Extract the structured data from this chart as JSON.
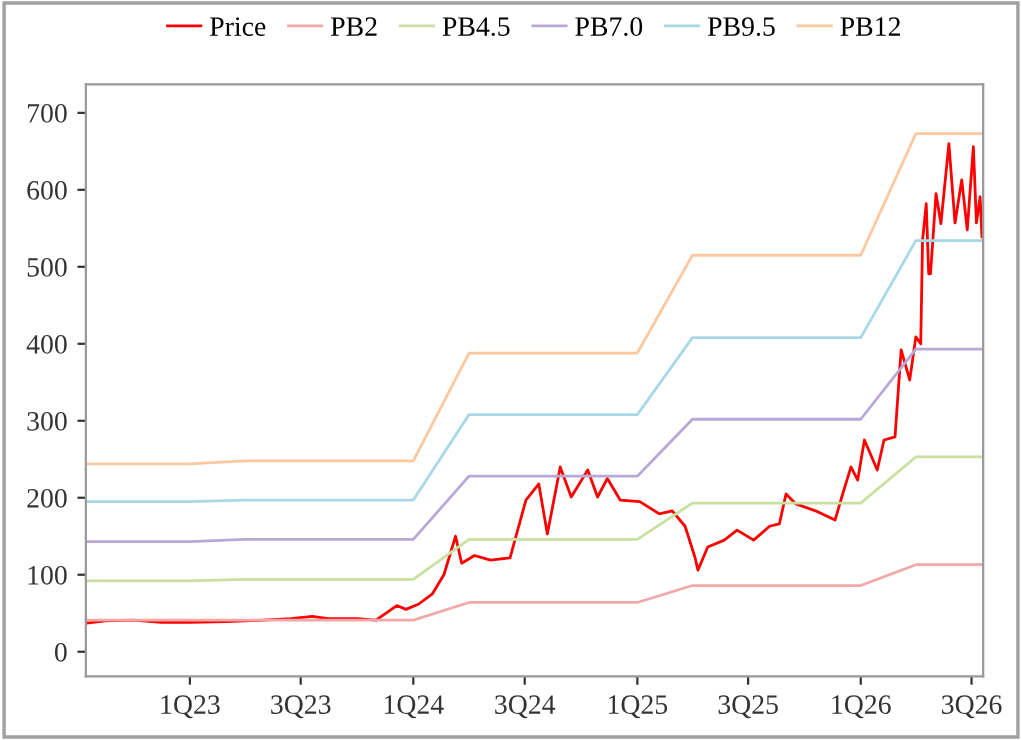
{
  "chart_data": {
    "type": "line",
    "xlim": [
      "2022-07-15",
      "2026-07-20"
    ],
    "xticks": [
      {
        "value": "2023-01-01",
        "label": "1Q23"
      },
      {
        "value": "2023-07-01",
        "label": "3Q23"
      },
      {
        "value": "2024-01-01",
        "label": "1Q24"
      },
      {
        "value": "2024-07-01",
        "label": "3Q24"
      },
      {
        "value": "2025-01-01",
        "label": "1Q25"
      },
      {
        "value": "2025-07-01",
        "label": "3Q25"
      },
      {
        "value": "2026-01-01",
        "label": "1Q26"
      },
      {
        "value": "2026-07-01",
        "label": "3Q26"
      }
    ],
    "ylim": [
      -32,
      737
    ],
    "yticks": [
      0,
      100,
      200,
      300,
      400,
      500,
      600,
      700
    ],
    "grid": false,
    "legend": "top",
    "line_style": "solid",
    "marker": "none",
    "series": [
      {
        "name": "Price",
        "color": "#ff0000",
        "x": [
          "2022-07-15",
          "2022-08-15",
          "2022-10-01",
          "2022-11-15",
          "2023-01-01",
          "2023-03-01",
          "2023-05-01",
          "2023-06-15",
          "2023-07-20",
          "2023-08-15",
          "2023-10-01",
          "2023-11-01",
          "2023-12-05",
          "2023-12-20",
          "2024-01-10",
          "2024-02-01",
          "2024-02-20",
          "2024-03-10",
          "2024-03-20",
          "2024-04-10",
          "2024-05-06",
          "2024-06-07",
          "2024-07-03",
          "2024-07-24",
          "2024-08-07",
          "2024-08-28",
          "2024-09-15",
          "2024-10-12",
          "2024-10-28",
          "2024-11-13",
          "2024-12-04",
          "2025-01-05",
          "2025-02-06",
          "2025-02-27",
          "2025-03-20",
          "2025-04-05",
          "2025-04-10",
          "2025-04-26",
          "2025-05-23",
          "2025-06-13",
          "2025-07-10",
          "2025-08-05",
          "2025-08-21",
          "2025-09-01",
          "2025-09-17",
          "2025-10-19",
          "2025-11-20",
          "2025-12-01",
          "2025-12-16",
          "2025-12-27",
          "2026-01-07",
          "2026-01-28",
          "2026-02-08",
          "2026-02-26",
          "2026-03-08",
          "2026-03-22",
          "2026-04-01",
          "2026-04-09",
          "2026-04-12",
          "2026-04-18",
          "2026-04-22",
          "2026-04-25",
          "2026-05-04",
          "2026-05-12",
          "2026-05-25",
          "2026-06-04",
          "2026-06-15",
          "2026-06-24",
          "2026-07-04",
          "2026-07-09",
          "2026-07-15",
          "2026-07-18"
        ],
        "values": [
          37,
          40,
          41,
          38,
          38,
          39,
          41,
          43,
          46,
          43,
          43,
          41,
          60,
          55,
          62,
          75,
          100,
          150,
          115,
          125,
          119,
          122,
          197,
          218,
          153,
          240,
          201,
          236,
          201,
          225,
          197,
          195,
          179,
          183,
          163,
          123,
          106,
          136,
          145,
          158,
          145,
          163,
          166,
          205,
          192,
          183,
          171,
          201,
          240,
          223,
          275,
          236,
          275,
          279,
          392,
          353,
          409,
          400,
          535,
          582,
          491,
          491,
          595,
          556,
          660,
          557,
          613,
          548,
          656,
          557,
          591,
          539
        ]
      },
      {
        "name": "PB2",
        "color": "#f0a8a8",
        "x": [
          "2022-07-15",
          "2023-01-01",
          "2023-04-01",
          "2024-01-01",
          "2024-04-01",
          "2025-01-01",
          "2025-04-01",
          "2026-01-01",
          "2026-04-01",
          "2026-07-20"
        ],
        "values": [
          41,
          41,
          41,
          41,
          64,
          64,
          86,
          86,
          113,
          113
        ]
      },
      {
        "name": "PB4.5",
        "color": "#c8e0a0",
        "x": [
          "2022-07-15",
          "2023-01-01",
          "2023-04-01",
          "2024-01-01",
          "2024-04-01",
          "2025-01-01",
          "2025-04-01",
          "2026-01-01",
          "2026-04-01",
          "2026-07-20"
        ],
        "values": [
          92,
          92,
          94,
          94,
          146,
          146,
          193,
          193,
          253,
          253
        ]
      },
      {
        "name": "PB7.0",
        "color": "#b8a8d8",
        "x": [
          "2022-07-15",
          "2023-01-01",
          "2023-04-01",
          "2024-01-01",
          "2024-04-01",
          "2025-01-01",
          "2025-04-01",
          "2026-01-01",
          "2026-04-01",
          "2026-07-20"
        ],
        "values": [
          143,
          143,
          146,
          146,
          228,
          228,
          302,
          302,
          393,
          393
        ]
      },
      {
        "name": "PB9.5",
        "color": "#a8d8e8",
        "x": [
          "2022-07-15",
          "2023-01-01",
          "2023-04-01",
          "2024-01-01",
          "2024-04-01",
          "2025-01-01",
          "2025-04-01",
          "2026-01-01",
          "2026-04-01",
          "2026-07-20"
        ],
        "values": [
          195,
          195,
          197,
          197,
          308,
          308,
          408,
          408,
          534,
          534
        ]
      },
      {
        "name": "PB12",
        "color": "#fcc8a0",
        "x": [
          "2022-07-15",
          "2023-01-01",
          "2023-04-01",
          "2024-01-01",
          "2024-04-01",
          "2025-01-01",
          "2025-04-01",
          "2026-01-01",
          "2026-04-01",
          "2026-07-20"
        ],
        "values": [
          244,
          244,
          248,
          248,
          388,
          388,
          515,
          515,
          673,
          673
        ]
      }
    ]
  }
}
